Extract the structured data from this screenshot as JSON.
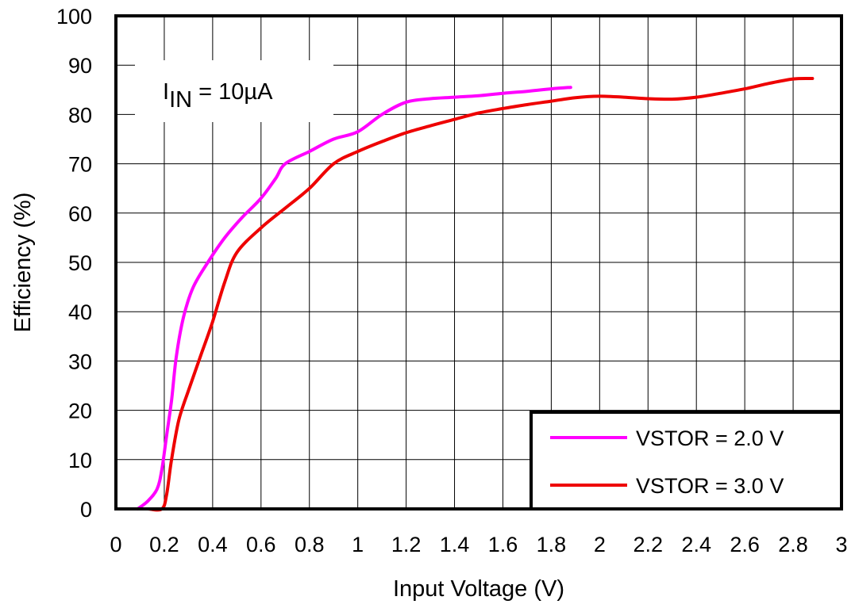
{
  "chart_data": {
    "type": "line",
    "title": "",
    "xlabel": "Input Voltage (V)",
    "ylabel": "Efficiency (%)",
    "xlim": [
      0,
      3
    ],
    "ylim": [
      0,
      100
    ],
    "x_ticks": [
      0,
      0.2,
      0.4,
      0.6,
      0.8,
      1,
      1.2,
      1.4,
      1.6,
      1.8,
      2,
      2.2,
      2.4,
      2.6,
      2.8,
      3
    ],
    "x_tick_labels": [
      "0",
      "0.2",
      "0.4",
      "0.6",
      "0.8",
      "1",
      "1.2",
      "1.4",
      "1.6",
      "1.8",
      "2",
      "2.2",
      "2.4",
      "2.6",
      "2.8",
      "3"
    ],
    "y_ticks": [
      0,
      10,
      20,
      30,
      40,
      50,
      60,
      70,
      80,
      90,
      100
    ],
    "y_tick_labels": [
      "0",
      "10",
      "20",
      "30",
      "40",
      "50",
      "60",
      "70",
      "80",
      "90",
      "100"
    ],
    "grid": true,
    "legend_position": "bottom-right",
    "annotation": {
      "main": "I",
      "subscript": "IN",
      "rest": " = 10µA"
    },
    "series": [
      {
        "name": "VSTOR = 2.0 V",
        "color": "#ff00ff",
        "points": [
          [
            0.09,
            0
          ],
          [
            0.13,
            1.5
          ],
          [
            0.17,
            4
          ],
          [
            0.19,
            8
          ],
          [
            0.21,
            15
          ],
          [
            0.23,
            22
          ],
          [
            0.25,
            31
          ],
          [
            0.28,
            39
          ],
          [
            0.32,
            45
          ],
          [
            0.38,
            50
          ],
          [
            0.45,
            55
          ],
          [
            0.52,
            59
          ],
          [
            0.6,
            63
          ],
          [
            0.66,
            67
          ],
          [
            0.7,
            70
          ],
          [
            0.8,
            72.5
          ],
          [
            0.9,
            75
          ],
          [
            1.0,
            76.5
          ],
          [
            1.1,
            80
          ],
          [
            1.2,
            82.5
          ],
          [
            1.3,
            83.2
          ],
          [
            1.4,
            83.5
          ],
          [
            1.5,
            83.8
          ],
          [
            1.6,
            84.3
          ],
          [
            1.7,
            84.7
          ],
          [
            1.8,
            85.2
          ],
          [
            1.88,
            85.5
          ]
        ]
      },
      {
        "name": "VSTOR = 3.0 V",
        "color": "#ee0000",
        "points": [
          [
            0.09,
            0
          ],
          [
            0.13,
            0
          ],
          [
            0.19,
            0
          ],
          [
            0.21,
            3
          ],
          [
            0.23,
            10
          ],
          [
            0.26,
            18
          ],
          [
            0.3,
            24
          ],
          [
            0.35,
            31
          ],
          [
            0.4,
            38
          ],
          [
            0.45,
            46
          ],
          [
            0.5,
            52
          ],
          [
            0.6,
            57
          ],
          [
            0.7,
            61
          ],
          [
            0.8,
            65
          ],
          [
            0.9,
            70
          ],
          [
            1.0,
            72.5
          ],
          [
            1.1,
            74.5
          ],
          [
            1.2,
            76.3
          ],
          [
            1.3,
            77.7
          ],
          [
            1.4,
            79
          ],
          [
            1.5,
            80.3
          ],
          [
            1.6,
            81.2
          ],
          [
            1.7,
            82
          ],
          [
            1.8,
            82.7
          ],
          [
            1.9,
            83.4
          ],
          [
            2.0,
            83.7
          ],
          [
            2.1,
            83.5
          ],
          [
            2.2,
            83.2
          ],
          [
            2.3,
            83.1
          ],
          [
            2.4,
            83.5
          ],
          [
            2.5,
            84.3
          ],
          [
            2.6,
            85.2
          ],
          [
            2.7,
            86.3
          ],
          [
            2.8,
            87.2
          ],
          [
            2.88,
            87.3
          ]
        ]
      }
    ]
  }
}
